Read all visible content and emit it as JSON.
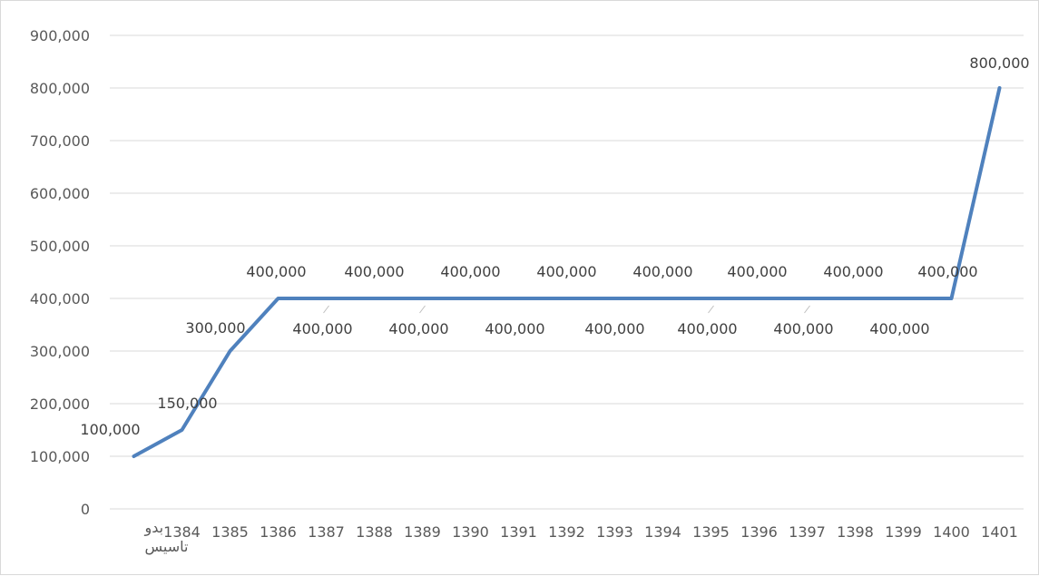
{
  "chart_data": {
    "type": "line",
    "categories": [
      "بدو تاسیس",
      "1384",
      "1385",
      "1386",
      "1387",
      "1388",
      "1389",
      "1390",
      "1391",
      "1392",
      "1393",
      "1394",
      "1395",
      "1396",
      "1397",
      "1398",
      "1399",
      "1400",
      "1401"
    ],
    "category_lines": [
      [
        "بدو",
        "تاسیس"
      ],
      [
        "1384"
      ],
      [
        "1385"
      ],
      [
        "1386"
      ],
      [
        "1387"
      ],
      [
        "1388"
      ],
      [
        "1389"
      ],
      [
        "1390"
      ],
      [
        "1391"
      ],
      [
        "1392"
      ],
      [
        "1393"
      ],
      [
        "1394"
      ],
      [
        "1395"
      ],
      [
        "1396"
      ],
      [
        "1397"
      ],
      [
        "1398"
      ],
      [
        "1399"
      ],
      [
        "1400"
      ],
      [
        "1401"
      ]
    ],
    "series": [
      {
        "values": [
          100000,
          150000,
          300000,
          400000,
          400000,
          400000,
          400000,
          400000,
          400000,
          400000,
          400000,
          400000,
          400000,
          400000,
          400000,
          400000,
          400000,
          400000,
          800000
        ],
        "data_labels": [
          "100,000",
          "150,000",
          "300,000",
          "400,000",
          "400,000",
          "400,000",
          "400,000",
          "400,000",
          "400,000",
          "400,000",
          "400,000",
          "400,000",
          "400,000",
          "400,000",
          "400,000",
          "400,000",
          "400,000",
          "400,000",
          "800,000"
        ],
        "color": "#4f81bd"
      }
    ],
    "y_ticks": [
      0,
      100000,
      200000,
      300000,
      400000,
      500000,
      600000,
      700000,
      800000,
      900000
    ],
    "y_tick_labels": [
      "0",
      "100,000",
      "200,000",
      "300,000",
      "400,000",
      "500,000",
      "600,000",
      "700,000",
      "800,000",
      "900,000"
    ],
    "ylim": [
      0,
      900000
    ],
    "title": "",
    "xlabel": "",
    "ylabel": "",
    "grid": true,
    "legend": false,
    "gridline_color": "#d9d9d9",
    "text_color": "#595959"
  }
}
